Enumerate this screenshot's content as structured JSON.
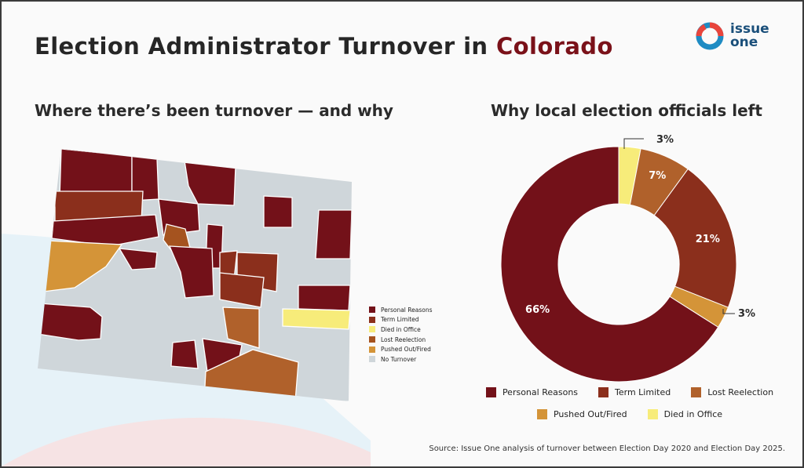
{
  "title": {
    "prefix": "Election Administrator Turnover in ",
    "highlight": "Colorado"
  },
  "logo": {
    "line1": "issue",
    "line2": "one",
    "icon": "issue-one-ring-logo"
  },
  "map_section": {
    "subtitle": "Where there’s been turnover — and why",
    "legend": [
      {
        "label": "Personal Reasons",
        "color": "#731119"
      },
      {
        "label": "Term Limited",
        "color": "#8b2f1c"
      },
      {
        "label": "Died in Office",
        "color": "#f7ec7a"
      },
      {
        "label": "Lost Reelection",
        "color": "#a5531f"
      },
      {
        "label": "Pushed Out/Fired",
        "color": "#d49438"
      },
      {
        "label": "No Turnover",
        "color": "#cfd6da"
      }
    ]
  },
  "chart_data": {
    "type": "pie",
    "title": "Why local election officials left",
    "style": "donut",
    "categories": [
      "Died in Office",
      "Lost Reelection",
      "Term Limited",
      "Pushed Out/Fired",
      "Personal Reasons"
    ],
    "values": [
      3,
      7,
      21,
      3,
      66
    ],
    "data_labels": [
      "3%",
      "7%",
      "21%",
      "3%",
      "66%"
    ],
    "colors": [
      "#f7ec7a",
      "#b0612b",
      "#8b2f1c",
      "#d49438",
      "#731119"
    ],
    "legend": [
      {
        "label": "Personal Reasons",
        "color": "#731119"
      },
      {
        "label": "Term Limited",
        "color": "#8b2f1c"
      },
      {
        "label": "Lost Reelection",
        "color": "#b0612b"
      },
      {
        "label": "Pushed Out/Fired",
        "color": "#d49438"
      },
      {
        "label": "Died in Office",
        "color": "#f7ec7a"
      }
    ],
    "legend_position": "bottom"
  },
  "source": "Source: Issue One analysis of turnover between Election Day 2020 and Election Day 2025."
}
